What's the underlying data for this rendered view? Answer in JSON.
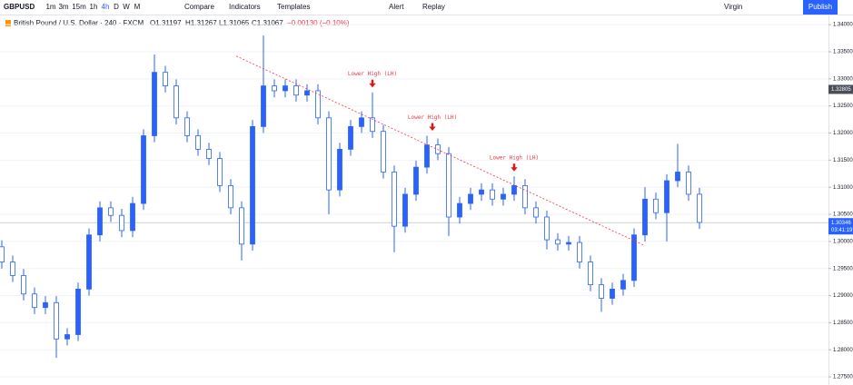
{
  "toolbar": {
    "symbol": "GBPUSD",
    "intervals": [
      "1m",
      "3m",
      "15m",
      "1h",
      "4h",
      "D",
      "W",
      "M"
    ],
    "active_interval": "4h",
    "buttons": [
      "Compare",
      "Indicators",
      "Templates",
      "Alert",
      "Replay"
    ],
    "layout_name": "Virgin",
    "publish": "Publish"
  },
  "legend": {
    "title": "British Pound / U.S. Dollar · 240 · FXCM",
    "open": "O1.31197",
    "high": "H1.31267",
    "low": "L1.31065",
    "close": "C1.31067",
    "change": "−0.00130 (−0.10%)"
  },
  "chart_data": {
    "type": "candlestick",
    "color": "#2962ff",
    "open": [
      1.299,
      1.2962,
      1.2937,
      1.2903,
      1.2878,
      1.2887,
      1.282,
      1.2828,
      1.2912,
      1.3012,
      1.3062,
      1.3048,
      1.302,
      1.307,
      1.3195,
      1.3312,
      1.3287,
      1.3228,
      1.3195,
      1.317,
      1.3153,
      1.3103,
      1.3062,
      1.2995,
      1.3212,
      1.3287,
      1.3278,
      1.3287,
      1.327,
      1.3278,
      1.3228,
      1.3095,
      1.317,
      1.3212,
      1.3228,
      1.3203,
      1.3128,
      1.3028,
      1.3087,
      1.3137,
      1.3178,
      1.3162,
      1.3045,
      1.307,
      1.3087,
      1.3095,
      1.3078,
      1.3087,
      1.3103,
      1.3062,
      1.3045,
      1.3003,
      1.2995,
      1.2998,
      1.2962,
      1.292,
      1.2895,
      1.2912,
      1.2928,
      1.3012,
      1.3078,
      1.3053,
      1.3112,
      1.3128,
      1.3087
    ],
    "high": [
      1.3002,
      1.2974,
      1.2949,
      1.2915,
      1.2899,
      1.2899,
      1.284,
      1.2924,
      1.3024,
      1.3074,
      1.3074,
      1.306,
      1.3082,
      1.3207,
      1.3345,
      1.3324,
      1.3299,
      1.324,
      1.3207,
      1.3182,
      1.3165,
      1.3115,
      1.3074,
      1.3224,
      1.338,
      1.3299,
      1.3299,
      1.3299,
      1.329,
      1.329,
      1.324,
      1.3182,
      1.3224,
      1.324,
      1.3275,
      1.3215,
      1.314,
      1.3099,
      1.3149,
      1.3195,
      1.319,
      1.3174,
      1.3082,
      1.3099,
      1.3107,
      1.3107,
      1.3099,
      1.312,
      1.3115,
      1.3074,
      1.3057,
      1.3015,
      1.301,
      1.301,
      1.2974,
      1.2932,
      1.2924,
      1.294,
      1.3024,
      1.31,
      1.309,
      1.3124,
      1.318,
      1.314,
      1.3099
    ],
    "low": [
      1.295,
      1.2925,
      1.2891,
      1.2866,
      1.2866,
      1.2785,
      1.2808,
      1.2816,
      1.29,
      1.3,
      1.3036,
      1.3008,
      1.3008,
      1.3058,
      1.3183,
      1.3275,
      1.3216,
      1.3183,
      1.3158,
      1.3141,
      1.3091,
      1.305,
      1.2965,
      1.2983,
      1.32,
      1.3266,
      1.3266,
      1.3258,
      1.3258,
      1.3216,
      1.305,
      1.3083,
      1.3158,
      1.32,
      1.3191,
      1.3116,
      1.298,
      1.3016,
      1.3075,
      1.3125,
      1.315,
      1.301,
      1.3033,
      1.3058,
      1.3075,
      1.3066,
      1.3066,
      1.3075,
      1.305,
      1.3033,
      1.2985,
      1.2983,
      1.2983,
      1.295,
      1.2908,
      1.287,
      1.2883,
      1.29,
      1.2916,
      1.3,
      1.3041,
      1.3,
      1.31,
      1.3075,
      1.3023
    ],
    "close": [
      1.2962,
      1.2937,
      1.2903,
      1.2878,
      1.2887,
      1.282,
      1.2828,
      1.2912,
      1.3012,
      1.3062,
      1.3048,
      1.302,
      1.307,
      1.3195,
      1.3312,
      1.3287,
      1.3228,
      1.3195,
      1.317,
      1.3153,
      1.3103,
      1.3062,
      1.2995,
      1.3212,
      1.3287,
      1.3278,
      1.3287,
      1.327,
      1.3278,
      1.3228,
      1.3095,
      1.317,
      1.3212,
      1.3228,
      1.3203,
      1.3128,
      1.3028,
      1.3087,
      1.3137,
      1.3178,
      1.3162,
      1.3045,
      1.307,
      1.3087,
      1.3095,
      1.3078,
      1.3087,
      1.3103,
      1.3062,
      1.3045,
      1.3003,
      1.2995,
      1.2998,
      1.2962,
      1.292,
      1.2895,
      1.2912,
      1.2928,
      1.3012,
      1.3078,
      1.3053,
      1.3112,
      1.3128,
      1.3087,
      1.3035
    ],
    "ylim": [
      1.2735,
      1.3417
    ],
    "yticks": [
      {
        "value": 1.34,
        "label": "1.34000"
      },
      {
        "value": 1.335,
        "label": "1.33500"
      },
      {
        "value": 1.33,
        "label": "1.33000"
      },
      {
        "value": 1.325,
        "label": "1.32500"
      },
      {
        "value": 1.32,
        "label": "1.32000"
      },
      {
        "value": 1.315,
        "label": "1.31500"
      },
      {
        "value": 1.31,
        "label": "1.31000"
      },
      {
        "value": 1.305,
        "label": "1.30500"
      },
      {
        "value": 1.3,
        "label": "1.30000"
      },
      {
        "value": 1.295,
        "label": "1.29500"
      },
      {
        "value": 1.29,
        "label": "1.29000"
      },
      {
        "value": 1.285,
        "label": "1.28500"
      },
      {
        "value": 1.28,
        "label": "1.28000"
      },
      {
        "value": 1.275,
        "label": "1.27500"
      }
    ],
    "grid": true,
    "last_price": {
      "value": 1.30346,
      "label": "1.30346"
    },
    "countdown": "03:41:19",
    "crosshair_price": {
      "value": 1.32805,
      "label": "1.32805"
    },
    "trend_line": {
      "color": "#f23645",
      "from": {
        "bar": 21.5,
        "price": 1.3342
      },
      "to": {
        "bar": 59,
        "price": 1.2992
      }
    },
    "annotations": [
      {
        "text": "Lower High (LH)",
        "bar": 34,
        "price": 1.3275
      },
      {
        "text": "Lower High (LH)",
        "bar": 39.5,
        "price": 1.3195
      },
      {
        "text": "Lower High (LH)",
        "bar": 47,
        "price": 1.312
      }
    ]
  }
}
